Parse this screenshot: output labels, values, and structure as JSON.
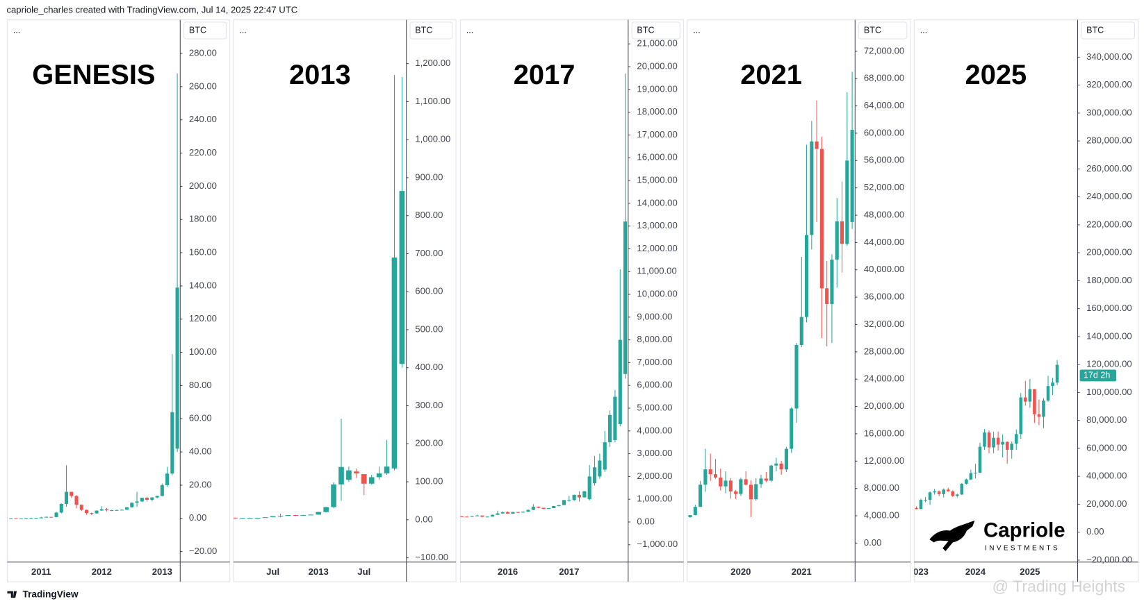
{
  "header": "capriole_charles created with TradingView.com, Jul 14, 2025 22:47 UTC",
  "footer": "TradingView",
  "watermark": "@ Trading Heights",
  "chart_data": [
    {
      "type": "candlestick",
      "title": "GENESIS",
      "menu": "...",
      "currency": "BTC",
      "up_color": "#26a69a",
      "down_color": "#ef5350",
      "categories": [
        null,
        null,
        null,
        null,
        null,
        null,
        "2011",
        null,
        null,
        null,
        null,
        null,
        null,
        null,
        null,
        null,
        null,
        null,
        "2012",
        null,
        null,
        null,
        null,
        null,
        null,
        null,
        null,
        null,
        null,
        null,
        "2013",
        null,
        null,
        null
      ],
      "open": [
        0.05,
        0.07,
        0.06,
        0.06,
        0.2,
        0.2,
        0.3,
        0.5,
        0.9,
        0.8,
        3.5,
        8.7,
        16,
        13.5,
        8.2,
        5.1,
        3.2,
        3,
        4.7,
        5.5,
        4.9,
        4.9,
        5,
        5.2,
        6.7,
        9.4,
        10.2,
        12.4,
        11.2,
        12.6,
        13.5,
        20,
        27,
        42
      ],
      "high": [
        0.1,
        0.07,
        0.07,
        0.2,
        0.5,
        0.3,
        0.9,
        1.1,
        0.9,
        3.9,
        9,
        32,
        16,
        14,
        8.4,
        5.3,
        3.5,
        4.8,
        7.3,
        6.2,
        5.2,
        5.3,
        5.3,
        6.8,
        9.7,
        16,
        12.5,
        13,
        12.8,
        13.6,
        21,
        31,
        99,
        268
      ],
      "low": [
        0.05,
        0.05,
        0.06,
        0.06,
        0.18,
        0.2,
        0.3,
        0.5,
        0.7,
        0.6,
        3,
        7,
        12.4,
        6,
        4.4,
        2.2,
        2,
        2.8,
        4.6,
        4.2,
        4.4,
        4.8,
        4.9,
        5.1,
        6.4,
        7,
        9.8,
        10.1,
        10.4,
        12,
        13.2,
        19,
        26,
        40
      ],
      "close": [
        0.07,
        0.06,
        0.06,
        0.2,
        0.2,
        0.3,
        0.5,
        0.9,
        0.8,
        3.5,
        8.7,
        16,
        13.5,
        8.2,
        5.1,
        3.2,
        3,
        4.7,
        5.5,
        4.9,
        4.9,
        5,
        5.2,
        6.7,
        9.4,
        10.2,
        12.4,
        11.2,
        12.6,
        13.5,
        20,
        27,
        64,
        139
      ],
      "ylim": [
        -26.3,
        300.2
      ],
      "yticks": [
        {
          "value": -20,
          "label": "−20.00"
        },
        {
          "value": 0,
          "label": "0.00"
        },
        {
          "value": 20,
          "label": "20.00"
        },
        {
          "value": 40,
          "label": "40.00"
        },
        {
          "value": 60,
          "label": "60.00"
        },
        {
          "value": 80,
          "label": "80.00"
        },
        {
          "value": 100,
          "label": "100.00"
        },
        {
          "value": 120,
          "label": "120.00"
        },
        {
          "value": 140,
          "label": "140.00"
        },
        {
          "value": 160,
          "label": "160.00"
        },
        {
          "value": 180,
          "label": "180.00"
        },
        {
          "value": 200,
          "label": "200.00"
        },
        {
          "value": 220,
          "label": "220.00"
        },
        {
          "value": 240,
          "label": "240.00"
        },
        {
          "value": 260,
          "label": "260.00"
        },
        {
          "value": 280,
          "label": "280.00"
        }
      ]
    },
    {
      "type": "candlestick",
      "title": "2013",
      "menu": "...",
      "currency": "BTC",
      "up_color": "#26a69a",
      "down_color": "#ef5350",
      "categories": [
        null,
        null,
        null,
        null,
        null,
        "Jul",
        null,
        null,
        null,
        null,
        null,
        "2013",
        null,
        null,
        null,
        null,
        null,
        "Jul",
        null,
        null,
        null,
        null,
        null
      ],
      "open": [
        5.5,
        4.9,
        4.9,
        5,
        5.2,
        6.7,
        9.4,
        10.2,
        12.4,
        11.2,
        12.6,
        13.5,
        20.4,
        33.4,
        93,
        105,
        127,
        120,
        95,
        112,
        122,
        135,
        410
      ],
      "high": [
        6.2,
        5.2,
        5.3,
        5.3,
        6.8,
        9.7,
        16,
        12.5,
        13,
        12.8,
        13.6,
        21,
        34,
        99,
        266,
        140,
        135,
        120,
        118,
        140,
        210,
        1170,
        1165
      ],
      "low": [
        4.2,
        4.4,
        4.8,
        4.9,
        5.1,
        6.4,
        7,
        9.8,
        10.1,
        10.4,
        12,
        13.2,
        19,
        30,
        50,
        100,
        110,
        65,
        92,
        105,
        118,
        130,
        400
      ],
      "close": [
        4.9,
        4.9,
        5,
        5.2,
        6.7,
        9.4,
        10.2,
        12.4,
        11.2,
        12.6,
        13.5,
        20.4,
        33.4,
        93,
        139,
        130,
        122,
        95,
        112,
        122,
        140,
        690,
        865
      ],
      "ylim": [
        -111.2,
        1315
      ],
      "yticks": [
        {
          "value": -100,
          "label": "−100.00"
        },
        {
          "value": 0,
          "label": "0.00"
        },
        {
          "value": 100,
          "label": "100.00"
        },
        {
          "value": 200,
          "label": "200.00"
        },
        {
          "value": 300,
          "label": "300.00"
        },
        {
          "value": 400,
          "label": "400.00"
        },
        {
          "value": 500,
          "label": "500.00"
        },
        {
          "value": 600,
          "label": "600.00"
        },
        {
          "value": 700,
          "label": "700.00"
        },
        {
          "value": 800,
          "label": "800.00"
        },
        {
          "value": 900,
          "label": "900.00"
        },
        {
          "value": 1000,
          "label": "1,000.00"
        },
        {
          "value": 1100,
          "label": "1,100.00"
        },
        {
          "value": 1200,
          "label": "1,200.00"
        }
      ]
    },
    {
      "type": "candlestick",
      "title": "2017",
      "menu": "...",
      "currency": "BTC",
      "up_color": "#26a69a",
      "down_color": "#ef5350",
      "categories": [
        null,
        null,
        null,
        null,
        null,
        null,
        null,
        null,
        null,
        "2016",
        null,
        null,
        null,
        null,
        null,
        null,
        null,
        null,
        null,
        null,
        null,
        "2017",
        null,
        null,
        null,
        null,
        null,
        null,
        null,
        null,
        null,
        null,
        null
      ],
      "open": [
        244,
        236,
        230,
        263,
        284,
        230,
        236,
        314,
        377,
        430,
        368,
        437,
        416,
        448,
        531,
        673,
        624,
        573,
        609,
        700,
        742,
        963,
        965,
        1190,
        1080,
        1000,
        1700,
        2000,
        2300,
        3500,
        3600,
        4300,
        6500
      ],
      "high": [
        260,
        245,
        268,
        318,
        285,
        250,
        330,
        495,
        466,
        460,
        445,
        440,
        470,
        550,
        780,
        680,
        625,
        615,
        705,
        750,
        970,
        1150,
        1200,
        1350,
        1360,
        2500,
        2900,
        3000,
        4000,
        4900,
        5800,
        11100,
        19700
      ],
      "low": [
        215,
        228,
        225,
        255,
        200,
        225,
        235,
        308,
        355,
        365,
        360,
        395,
        410,
        440,
        520,
        605,
        560,
        570,
        600,
        690,
        735,
        890,
        920,
        890,
        1070,
        950,
        1600,
        1900,
        2200,
        3300,
        3500,
        4200,
        6300
      ],
      "close": [
        236,
        230,
        263,
        284,
        230,
        236,
        314,
        377,
        430,
        368,
        437,
        416,
        448,
        531,
        673,
        624,
        573,
        609,
        700,
        742,
        963,
        965,
        1190,
        1080,
        1350,
        2000,
        2400,
        2700,
        3500,
        4700,
        5500,
        8000,
        13200
      ],
      "ylim": [
        -1760,
        22055
      ],
      "yticks": [
        {
          "value": -1000,
          "label": "−1,000.00"
        },
        {
          "value": 0,
          "label": "0.00"
        },
        {
          "value": 1000,
          "label": "1,000.00"
        },
        {
          "value": 2000,
          "label": "2,000.00"
        },
        {
          "value": 3000,
          "label": "3,000.00"
        },
        {
          "value": 4000,
          "label": "4,000.00"
        },
        {
          "value": 5000,
          "label": "5,000.00"
        },
        {
          "value": 6000,
          "label": "6,000.00"
        },
        {
          "value": 7000,
          "label": "7,000.00"
        },
        {
          "value": 8000,
          "label": "8,000.00"
        },
        {
          "value": 9000,
          "label": "9,000.00"
        },
        {
          "value": 10000,
          "label": "10,000.00"
        },
        {
          "value": 11000,
          "label": "11,000.00"
        },
        {
          "value": 12000,
          "label": "12,000.00"
        },
        {
          "value": 13000,
          "label": "13,000.00"
        },
        {
          "value": 14000,
          "label": "14,000.00"
        },
        {
          "value": 15000,
          "label": "15,000.00"
        },
        {
          "value": 16000,
          "label": "16,000.00"
        },
        {
          "value": 17000,
          "label": "17,000.00"
        },
        {
          "value": 18000,
          "label": "18,000.00"
        },
        {
          "value": 19000,
          "label": "19,000.00"
        },
        {
          "value": 20000,
          "label": "20,000.00"
        },
        {
          "value": 21000,
          "label": "21,000.00"
        }
      ]
    },
    {
      "type": "candlestick",
      "title": "2021",
      "menu": "...",
      "currency": "BTC",
      "up_color": "#26a69a",
      "down_color": "#ef5350",
      "categories": [
        null,
        null,
        null,
        null,
        null,
        null,
        null,
        null,
        null,
        null,
        "2020",
        null,
        null,
        null,
        null,
        null,
        null,
        null,
        null,
        null,
        null,
        null,
        "2021",
        null,
        null,
        null,
        null,
        null,
        null,
        null,
        null,
        null,
        null
      ],
      "open": [
        3800,
        4100,
        5300,
        8550,
        10800,
        10080,
        9600,
        8300,
        9150,
        7560,
        7190,
        9350,
        8540,
        6420,
        8630,
        9450,
        9140,
        11350,
        11650,
        10780,
        13800,
        19700,
        29000,
        33100,
        45100,
        58800,
        57700,
        37300,
        35000,
        41500,
        47100,
        43800,
        47000
      ],
      "high": [
        4100,
        5600,
        9100,
        13800,
        13100,
        12300,
        10900,
        10500,
        9500,
        7750,
        9600,
        10500,
        9200,
        9500,
        10000,
        10400,
        11450,
        12500,
        12050,
        14100,
        19900,
        29300,
        41900,
        58300,
        61800,
        64800,
        59500,
        41300,
        42300,
        50500,
        52900,
        66000,
        69000
      ],
      "low": [
        3700,
        4050,
        5300,
        7500,
        9100,
        9400,
        7700,
        7300,
        6500,
        6450,
        6900,
        8450,
        3800,
        6200,
        8100,
        8900,
        8950,
        10500,
        10000,
        10400,
        13200,
        17600,
        28700,
        32300,
        43000,
        47000,
        30000,
        28800,
        29300,
        37400,
        39600,
        43500,
        46000
      ],
      "close": [
        4100,
        5300,
        8550,
        10800,
        10080,
        9600,
        8300,
        9150,
        7560,
        7190,
        9350,
        8540,
        6420,
        8630,
        9450,
        9140,
        11350,
        11650,
        10780,
        13800,
        19700,
        29000,
        33100,
        45100,
        58800,
        57700,
        37300,
        35000,
        41500,
        47100,
        43800,
        56000,
        60500
      ],
      "ylim": [
        -2773,
        76587
      ],
      "yticks": [
        {
          "value": 0,
          "label": "0.00"
        },
        {
          "value": 4000,
          "label": "4,000.00"
        },
        {
          "value": 8000,
          "label": "8,000.00"
        },
        {
          "value": 12000,
          "label": "12,000.00"
        },
        {
          "value": 16000,
          "label": "16,000.00"
        },
        {
          "value": 20000,
          "label": "20,000.00"
        },
        {
          "value": 24000,
          "label": "24,000.00"
        },
        {
          "value": 28000,
          "label": "28,000.00"
        },
        {
          "value": 32000,
          "label": "32,000.00"
        },
        {
          "value": 36000,
          "label": "36,000.00"
        },
        {
          "value": 40000,
          "label": "40,000.00"
        },
        {
          "value": 44000,
          "label": "44,000.00"
        },
        {
          "value": 48000,
          "label": "48,000.00"
        },
        {
          "value": 52000,
          "label": "52,000.00"
        },
        {
          "value": 56000,
          "label": "56,000.00"
        },
        {
          "value": 60000,
          "label": "60,000.00"
        },
        {
          "value": 64000,
          "label": "64,000.00"
        },
        {
          "value": 68000,
          "label": "68,000.00"
        },
        {
          "value": 72000,
          "label": "72,000.00"
        }
      ]
    },
    {
      "type": "candlestick",
      "title": "2025",
      "menu": "...",
      "currency": "BTC",
      "up_color": "#26a69a",
      "down_color": "#ef5350",
      "countdown": "17d 2h",
      "logo": {
        "name": "Capriole",
        "tagline": "INVESTMENTS"
      },
      "categories": [
        null,
        "023",
        null,
        null,
        null,
        null,
        null,
        null,
        null,
        null,
        null,
        null,
        null,
        "2024",
        null,
        null,
        null,
        null,
        null,
        null,
        null,
        null,
        null,
        null,
        null,
        "2025",
        null,
        null,
        null,
        null,
        null,
        null
      ],
      "open": [
        17170,
        16540,
        23130,
        23150,
        28480,
        29250,
        27220,
        30480,
        29230,
        25940,
        26970,
        34640,
        37720,
        42280,
        42580,
        61130,
        71330,
        60670,
        67540,
        62680,
        64620,
        58970,
        63330,
        70220,
        96450,
        93430,
        102400,
        84370,
        82550,
        94200,
        104600,
        107100
      ],
      "high": [
        18400,
        23900,
        25250,
        29200,
        31000,
        29800,
        31400,
        31800,
        30000,
        27500,
        35200,
        38400,
        44700,
        48900,
        64000,
        73800,
        72800,
        71900,
        72000,
        70000,
        65100,
        64900,
        73600,
        99600,
        108300,
        109600,
        102500,
        95000,
        95800,
        111900,
        110500,
        123200
      ],
      "low": [
        16250,
        16500,
        21400,
        19550,
        26900,
        25800,
        24800,
        28900,
        25200,
        24900,
        26550,
        34100,
        37600,
        38500,
        42200,
        59000,
        56500,
        56600,
        58400,
        53500,
        49000,
        52600,
        58900,
        66800,
        90500,
        89100,
        78200,
        76600,
        74500,
        93400,
        98200,
        105300
      ],
      "close": [
        16540,
        23130,
        23150,
        28480,
        29250,
        27220,
        30480,
        29230,
        25940,
        26970,
        34640,
        37720,
        42280,
        42580,
        61130,
        71330,
        60670,
        67540,
        62680,
        64620,
        58970,
        63330,
        70220,
        96450,
        93430,
        102400,
        84370,
        82550,
        94200,
        104600,
        107100,
        119800
      ],
      "ylim": [
        -21382,
        366650
      ],
      "yticks": [
        {
          "value": -20000,
          "label": "−20,000.00"
        },
        {
          "value": 0,
          "label": "0.00"
        },
        {
          "value": 20000,
          "label": "20,000.00"
        },
        {
          "value": 40000,
          "label": "40,000.00"
        },
        {
          "value": 60000,
          "label": "60,000.00"
        },
        {
          "value": 80000,
          "label": "80,000.00"
        },
        {
          "value": 100000,
          "label": "100,000.00"
        },
        {
          "value": 120000,
          "label": "120,000.00"
        },
        {
          "value": 140000,
          "label": "140,000.00"
        },
        {
          "value": 160000,
          "label": "160,000.00"
        },
        {
          "value": 180000,
          "label": "180,000.00"
        },
        {
          "value": 200000,
          "label": "200,000.00"
        },
        {
          "value": 220000,
          "label": "220,000.00"
        },
        {
          "value": 240000,
          "label": "240,000.00"
        },
        {
          "value": 260000,
          "label": "260,000.00"
        },
        {
          "value": 280000,
          "label": "280,000.00"
        },
        {
          "value": 300000,
          "label": "300,000.00"
        },
        {
          "value": 320000,
          "label": "320,000.00"
        },
        {
          "value": 340000,
          "label": "340,000.00"
        }
      ]
    }
  ]
}
